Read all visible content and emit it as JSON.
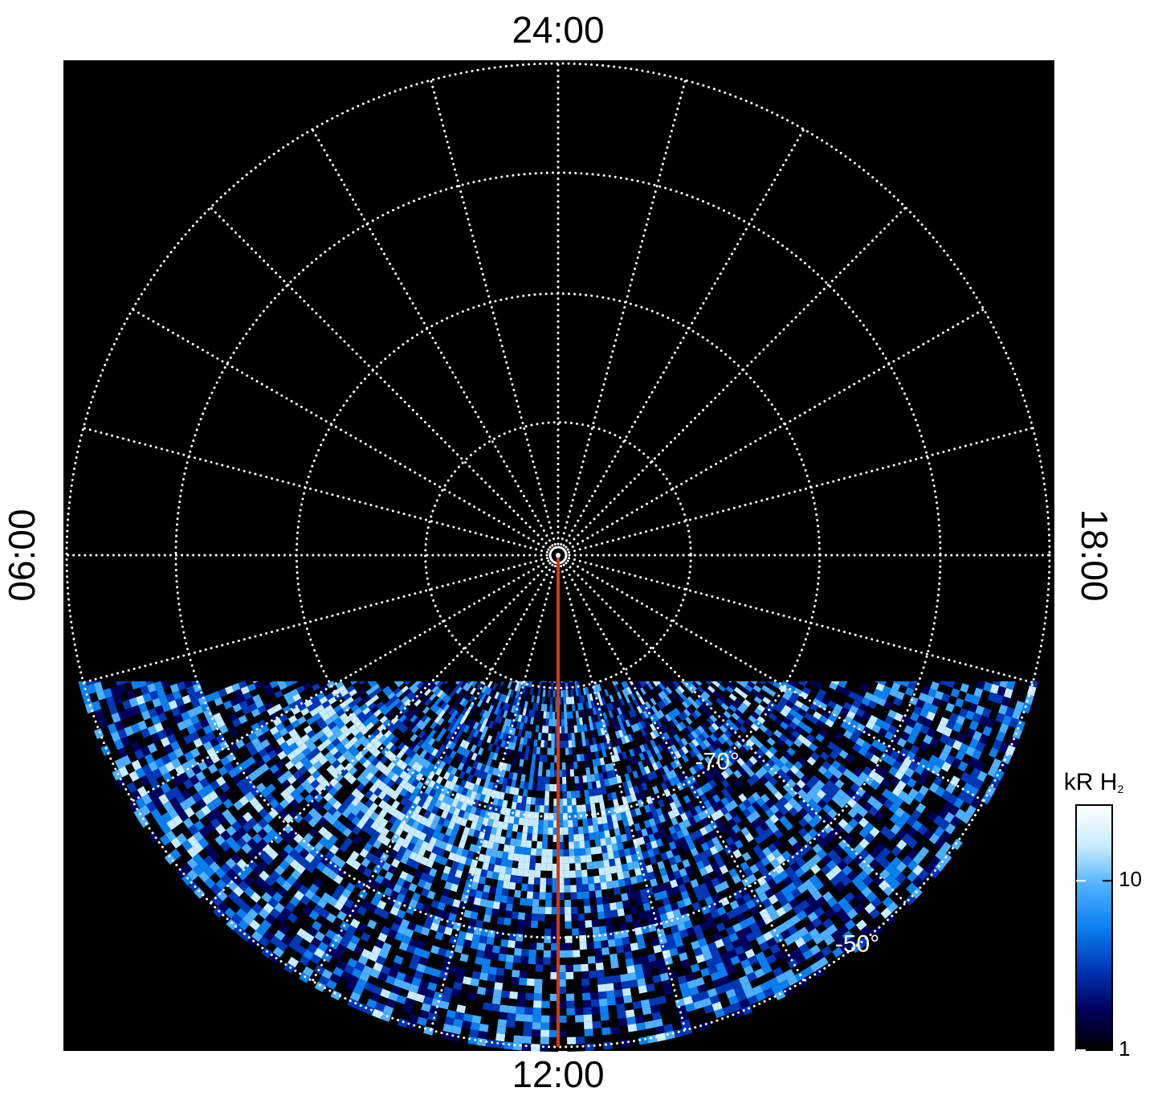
{
  "chart_data": {
    "type": "polar-map",
    "lt_labels": [
      {
        "value": 24,
        "label": "24:00"
      },
      {
        "value": 12,
        "label": "12:00"
      },
      {
        "value": 6,
        "label": "06:00"
      },
      {
        "value": 18,
        "label": "18:00"
      }
    ],
    "meridians": [
      0,
      1,
      2,
      3,
      4,
      5,
      6,
      7,
      8,
      9,
      10,
      11,
      12,
      13,
      14,
      15,
      16,
      17,
      18,
      19,
      20,
      21,
      22,
      23
    ],
    "rlim": [
      -90,
      -50
    ],
    "lat_circles": [
      -50,
      -60,
      -70,
      -80
    ],
    "lat_labels": [
      {
        "value": -70,
        "label": "-70°"
      },
      {
        "value": -50,
        "label": "-50°"
      }
    ],
    "lat_label_lt": 14.5,
    "highlight_lt": 12,
    "highlight_color": "#d23a12",
    "grid": true,
    "colorbar": {
      "label": "kR H",
      "label_sub": "2",
      "log": true,
      "lim": [
        1,
        28
      ],
      "ticks": [
        1,
        10
      ],
      "colors": [
        "#000000",
        "#00005c",
        "#0038b8",
        "#0a7ff0",
        "#4cb0ff",
        "#c8ecff",
        "#ffffff"
      ]
    }
  }
}
